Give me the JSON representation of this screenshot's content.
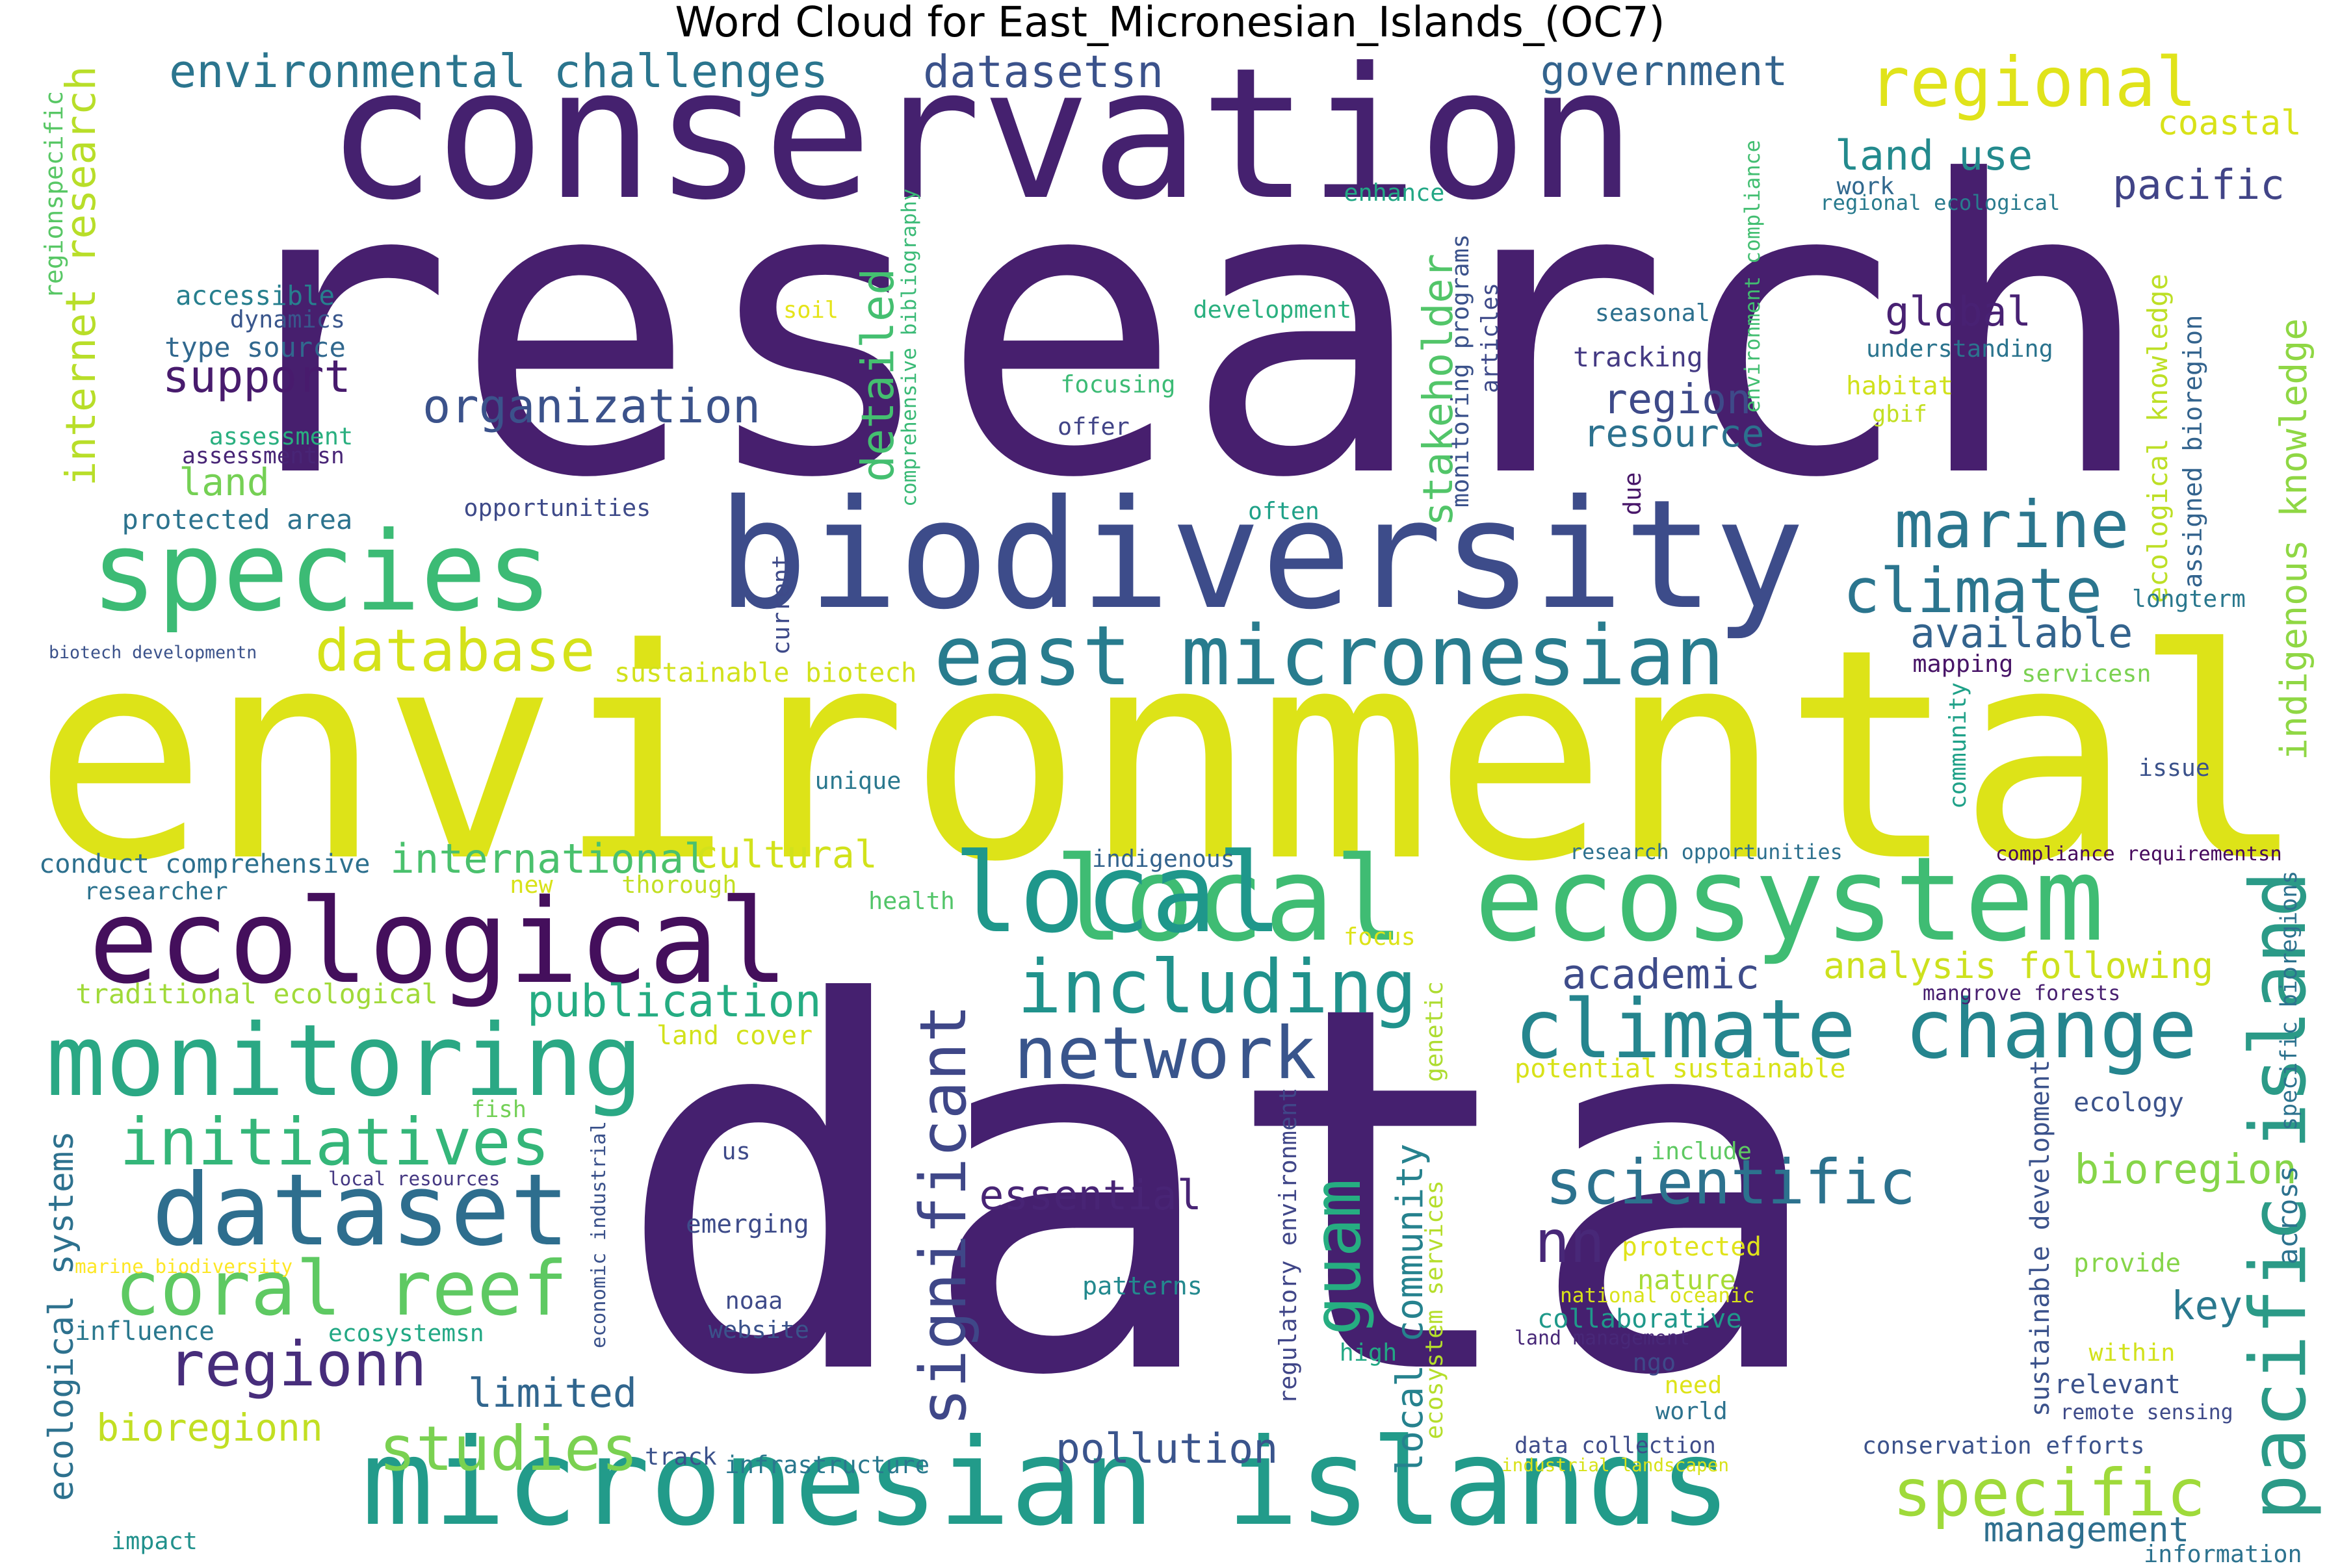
{
  "title": "Word Cloud for East_Micronesian_Islands_(OC7)",
  "palette": {
    "dark_purple": "#440154",
    "indigo": "#3b528b",
    "teal": "#21918c",
    "green": "#5ec962",
    "yellow": "#dce319"
  },
  "words": [
    {
      "text": "research",
      "color": "#471f6e"
    },
    {
      "text": "data",
      "color": "#45206f"
    },
    {
      "text": "environmental",
      "color": "#dde318"
    },
    {
      "text": "conservation",
      "color": "#45216f"
    },
    {
      "text": "biodiversity",
      "color": "#3d4c8a"
    },
    {
      "text": "species",
      "color": "#3cbb75"
    },
    {
      "text": "local ecosystem",
      "color": "#3fbc73"
    },
    {
      "text": "ecological",
      "color": "#440f5c"
    },
    {
      "text": "micronesian islands",
      "color": "#229b8a"
    },
    {
      "text": "monitoring",
      "color": "#2aa884"
    },
    {
      "text": "dataset",
      "color": "#2e6e8e"
    },
    {
      "text": "local",
      "color": "#1f978b"
    },
    {
      "text": "climate change",
      "color": "#25858e"
    },
    {
      "text": "east micronesian",
      "color": "#287c8e"
    },
    {
      "text": "pacific island",
      "color": "#2b9a87"
    },
    {
      "text": "regional",
      "color": "#e0e31a"
    },
    {
      "text": "including",
      "color": "#20928c"
    },
    {
      "text": "network",
      "color": "#39558c"
    },
    {
      "text": "initiatives",
      "color": "#34b679"
    },
    {
      "text": "coral reef",
      "color": "#5ec962"
    },
    {
      "text": "regionn",
      "color": "#472d7b"
    },
    {
      "text": "significant",
      "color": "#3f4788"
    },
    {
      "text": "scientific",
      "color": "#2c728e"
    },
    {
      "text": "studies",
      "color": "#7ad151"
    },
    {
      "text": "specific",
      "color": "#9fda3a"
    },
    {
      "text": "database",
      "color": "#d5e21a"
    },
    {
      "text": "marine",
      "color": "#2a768e"
    },
    {
      "text": "climate",
      "color": "#2b758e"
    },
    {
      "text": "nn",
      "color": "#482878"
    },
    {
      "text": "guam",
      "color": "#26ad81"
    },
    {
      "text": "environmental challenges",
      "color": "#2b758e"
    },
    {
      "text": "government",
      "color": "#33638d"
    },
    {
      "text": "datasetsn",
      "color": "#3b528b"
    },
    {
      "text": "organization",
      "color": "#3b528b"
    },
    {
      "text": "support",
      "color": "#481b6d"
    },
    {
      "text": "internet research",
      "color": "#b8de29"
    },
    {
      "text": "detailed",
      "color": "#44bf70"
    },
    {
      "text": "stakeholder",
      "color": "#52c569"
    },
    {
      "text": "land use",
      "color": "#238a8d"
    },
    {
      "text": "pacific",
      "color": "#414487"
    },
    {
      "text": "coastal",
      "color": "#d8e219"
    },
    {
      "text": "global",
      "color": "#482173"
    },
    {
      "text": "region",
      "color": "#3e4a89"
    },
    {
      "text": "resource",
      "color": "#2c718e"
    },
    {
      "text": "available",
      "color": "#33638d"
    },
    {
      "text": "indigenous knowledge",
      "color": "#8fd744"
    },
    {
      "text": "international",
      "color": "#4ac16d"
    },
    {
      "text": "cultural",
      "color": "#d2e21b"
    },
    {
      "text": "publication",
      "color": "#25ac82"
    },
    {
      "text": "academic",
      "color": "#3e4c8a"
    },
    {
      "text": "analysis following",
      "color": "#cde11d"
    },
    {
      "text": "essential",
      "color": "#482475"
    },
    {
      "text": "bioregion",
      "color": "#86d549"
    },
    {
      "text": "key",
      "color": "#2a788e"
    },
    {
      "text": "local community",
      "color": "#26828e"
    },
    {
      "text": "pollution",
      "color": "#3a548c"
    },
    {
      "text": "limited",
      "color": "#31668e"
    },
    {
      "text": "management",
      "color": "#2e6f8e"
    },
    {
      "text": "bioregionn",
      "color": "#c2df23"
    },
    {
      "text": "ecological systems",
      "color": "#2d718e"
    },
    {
      "text": "land",
      "color": "#75d054"
    },
    {
      "text": "protected area",
      "color": "#2c738e"
    },
    {
      "text": "accessible",
      "color": "#277f8e"
    },
    {
      "text": "dynamics",
      "color": "#39568c"
    },
    {
      "text": "type source",
      "color": "#31688e"
    },
    {
      "text": "assessment",
      "color": "#29af7f"
    },
    {
      "text": "assessmentsn",
      "color": "#482576"
    },
    {
      "text": "regionspecific",
      "color": "#58c765"
    },
    {
      "text": "opportunities",
      "color": "#3e4a89"
    },
    {
      "text": "often",
      "color": "#1fa188"
    },
    {
      "text": "soil",
      "color": "#e5e419"
    },
    {
      "text": "development",
      "color": "#2ab07f"
    },
    {
      "text": "focusing",
      "color": "#3cbb75"
    },
    {
      "text": "offer",
      "color": "#414487"
    },
    {
      "text": "comprehensive bibliography",
      "color": "#3aba76"
    },
    {
      "text": "monitoring programs",
      "color": "#3b528b"
    },
    {
      "text": "articles",
      "color": "#3e4989"
    },
    {
      "text": "enhance",
      "color": "#22a785"
    },
    {
      "text": "work",
      "color": "#31688e"
    },
    {
      "text": "regional ecological",
      "color": "#297b8e"
    },
    {
      "text": "environment compliance",
      "color": "#42be71"
    },
    {
      "text": "seasonal",
      "color": "#2d708e"
    },
    {
      "text": "tracking",
      "color": "#443a83"
    },
    {
      "text": "understanding",
      "color": "#2b748e"
    },
    {
      "text": "habitat",
      "color": "#d0e11c"
    },
    {
      "text": "gbif",
      "color": "#c2df23"
    },
    {
      "text": "ecological knowledge",
      "color": "#bddf26"
    },
    {
      "text": "assigned bioregion",
      "color": "#33638d"
    },
    {
      "text": "longterm",
      "color": "#2a788e"
    },
    {
      "text": "due",
      "color": "#481769"
    },
    {
      "text": "current",
      "color": "#3e4a89"
    },
    {
      "text": "biotech developmentn",
      "color": "#3b528b"
    },
    {
      "text": "sustainable biotech",
      "color": "#d2e21b"
    },
    {
      "text": "mapping",
      "color": "#481467"
    },
    {
      "text": "servicesn",
      "color": "#7ad151"
    },
    {
      "text": "community",
      "color": "#1fa188"
    },
    {
      "text": "issue",
      "color": "#3b528b"
    },
    {
      "text": "unique",
      "color": "#2a788e"
    },
    {
      "text": "conduct comprehensive",
      "color": "#2d708e"
    },
    {
      "text": "indigenous",
      "color": "#33638d"
    },
    {
      "text": "research opportunities",
      "color": "#2d708e"
    },
    {
      "text": "compliance requirementsn",
      "color": "#46085c"
    },
    {
      "text": "researcher",
      "color": "#2c728e"
    },
    {
      "text": "new",
      "color": "#d8e219"
    },
    {
      "text": "thorough",
      "color": "#c2df23"
    },
    {
      "text": "health",
      "color": "#52c569"
    },
    {
      "text": "focus",
      "color": "#dde318"
    },
    {
      "text": "specific bioregions",
      "color": "#2c728e"
    },
    {
      "text": "traditional ecological",
      "color": "#a0da39"
    },
    {
      "text": "land cover",
      "color": "#d2e21b"
    },
    {
      "text": "genetic",
      "color": "#addc30"
    },
    {
      "text": "potential sustainable",
      "color": "#d8e219"
    },
    {
      "text": "mangrove forests",
      "color": "#481f70"
    },
    {
      "text": "fish",
      "color": "#73d056"
    },
    {
      "text": "us",
      "color": "#3e4a89"
    },
    {
      "text": "local resources",
      "color": "#453882"
    },
    {
      "text": "economic industrial",
      "color": "#3b528b"
    },
    {
      "text": "emerging",
      "color": "#3e4c8a"
    },
    {
      "text": "regulatory environment",
      "color": "#404688"
    },
    {
      "text": "ecosystem services",
      "color": "#b5de2b"
    },
    {
      "text": "include",
      "color": "#5ec962"
    },
    {
      "text": "ecology",
      "color": "#3b528b"
    },
    {
      "text": "sustainable development",
      "color": "#3b528b"
    },
    {
      "text": "across",
      "color": "#2c728e"
    },
    {
      "text": "marine biodiversity",
      "color": "#fde725"
    },
    {
      "text": "influence",
      "color": "#2a788e"
    },
    {
      "text": "ecosystemsn",
      "color": "#22a884"
    },
    {
      "text": "noaa",
      "color": "#3e4a89"
    },
    {
      "text": "website",
      "color": "#3b528b"
    },
    {
      "text": "patterns",
      "color": "#23898e"
    },
    {
      "text": "protected",
      "color": "#e0e31a"
    },
    {
      "text": "nature",
      "color": "#a5db36"
    },
    {
      "text": "national oceanic",
      "color": "#d8e219"
    },
    {
      "text": "collaborative",
      "color": "#1f998a"
    },
    {
      "text": "provide",
      "color": "#86d549"
    },
    {
      "text": "high",
      "color": "#22a884"
    },
    {
      "text": "land management",
      "color": "#482878"
    },
    {
      "text": "ngo",
      "color": "#3e4989"
    },
    {
      "text": "within",
      "color": "#d2e21b"
    },
    {
      "text": "relevant",
      "color": "#3b528b"
    },
    {
      "text": "need",
      "color": "#dde318"
    },
    {
      "text": "remote sensing",
      "color": "#3e4a89"
    },
    {
      "text": "world",
      "color": "#2c728e"
    },
    {
      "text": "impact",
      "color": "#21918c"
    },
    {
      "text": "track",
      "color": "#3b528b"
    },
    {
      "text": "infrastructure",
      "color": "#2a788e"
    },
    {
      "text": "data collection",
      "color": "#3e4c8a"
    },
    {
      "text": "industrial landscapen",
      "color": "#d8e219"
    },
    {
      "text": "conservation efforts",
      "color": "#3b528b"
    },
    {
      "text": "information",
      "color": "#2c728e"
    }
  ]
}
